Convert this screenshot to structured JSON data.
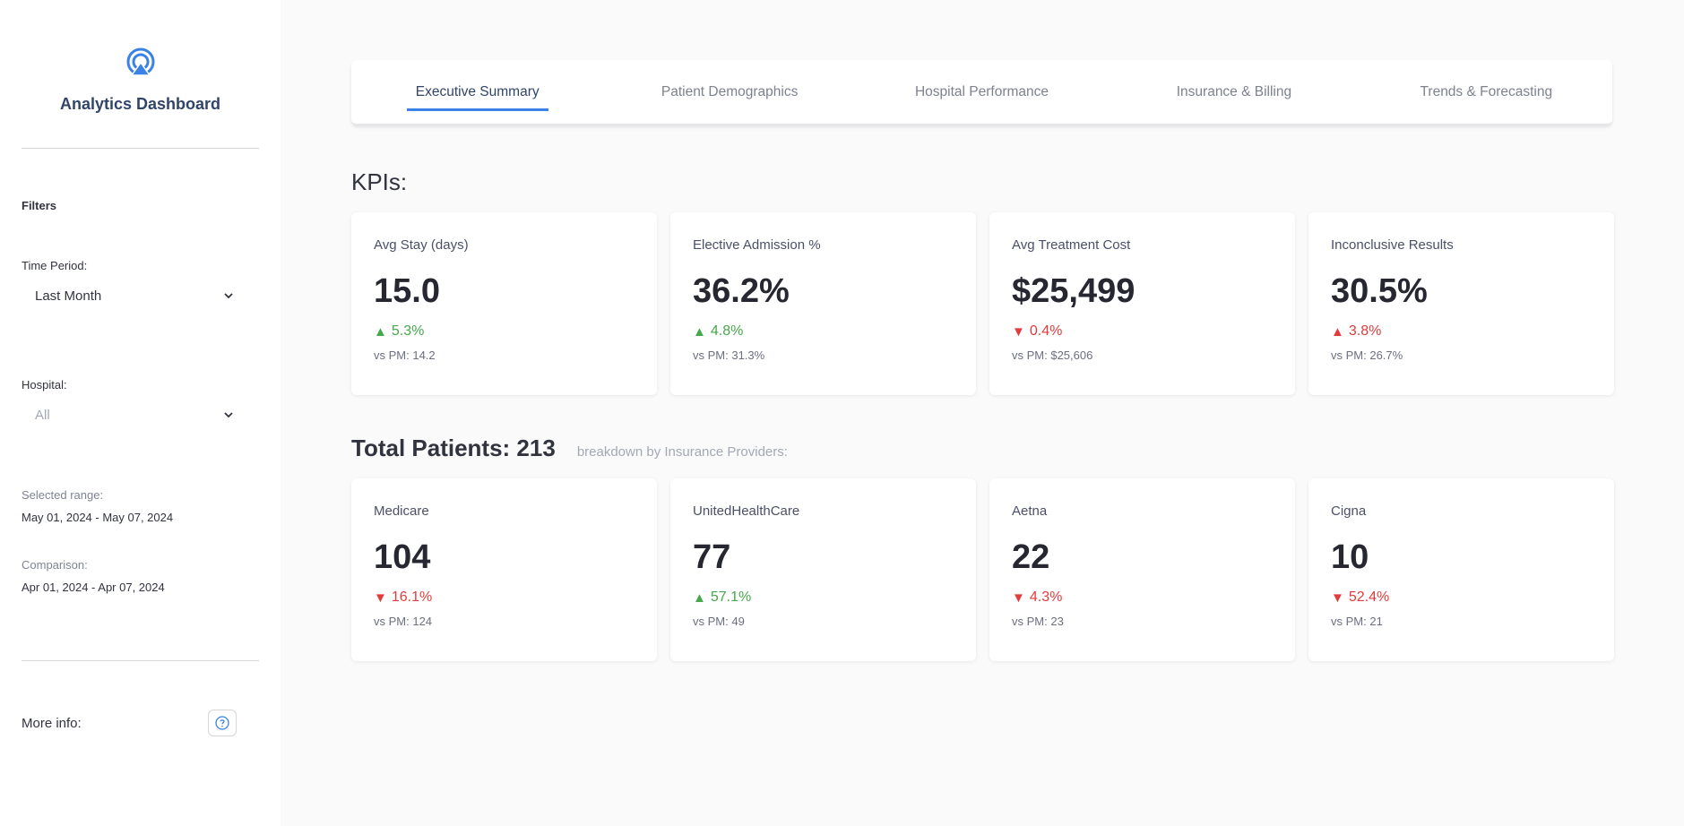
{
  "sidebar": {
    "title": "Analytics Dashboard",
    "filters_title": "Filters",
    "time_period": {
      "label": "Time Period:",
      "value": "Last Month"
    },
    "hospital": {
      "label": "Hospital:",
      "value": "All"
    },
    "selected_range": {
      "label": "Selected range:",
      "value": "May 01, 2024 - May 07, 2024"
    },
    "comparison": {
      "label": "Comparison:",
      "value": "Apr 01, 2024 - Apr 07, 2024"
    },
    "more_info_label": "More info:"
  },
  "tabs": [
    {
      "label": "Executive Summary",
      "active": true
    },
    {
      "label": "Patient Demographics",
      "active": false
    },
    {
      "label": "Hospital Performance",
      "active": false
    },
    {
      "label": "Insurance & Billing",
      "active": false
    },
    {
      "label": "Trends & Forecasting",
      "active": false
    }
  ],
  "kpis": {
    "title": "KPIs:",
    "cards": [
      {
        "label": "Avg Stay (days)",
        "value": "15.0",
        "direction": "up",
        "arrow": "▲",
        "delta": "5.3%",
        "prev": "vs PM: 14.2"
      },
      {
        "label": "Elective Admission %",
        "value": "36.2%",
        "direction": "up",
        "arrow": "▲",
        "delta": "4.8%",
        "prev": "vs PM: 31.3%"
      },
      {
        "label": "Avg Treatment Cost",
        "value": "$25,499",
        "direction": "down",
        "arrow": "▼",
        "delta": "0.4%",
        "prev": "vs PM: $25,606"
      },
      {
        "label": "Inconclusive Results",
        "value": "30.5%",
        "direction": "down",
        "arrow": "▲",
        "delta": "3.8%",
        "prev": "vs PM: 26.7%"
      }
    ]
  },
  "patients": {
    "title": "Total Patients: 213",
    "subtitle": "breakdown by Insurance Providers:",
    "cards": [
      {
        "label": "Medicare",
        "value": "104",
        "direction": "down",
        "arrow": "▼",
        "delta": "16.1%",
        "prev": "vs PM: 124"
      },
      {
        "label": "UnitedHealthCare",
        "value": "77",
        "direction": "up",
        "arrow": "▲",
        "delta": "57.1%",
        "prev": "vs PM: 49"
      },
      {
        "label": "Aetna",
        "value": "22",
        "direction": "down",
        "arrow": "▼",
        "delta": "4.3%",
        "prev": "vs PM: 23"
      },
      {
        "label": "Cigna",
        "value": "10",
        "direction": "down",
        "arrow": "▼",
        "delta": "52.4%",
        "prev": "vs PM: 21"
      }
    ]
  },
  "colors": {
    "brand": "#3b82e6",
    "title": "#31456a",
    "up": "#45a84b",
    "down": "#e33b3b"
  }
}
